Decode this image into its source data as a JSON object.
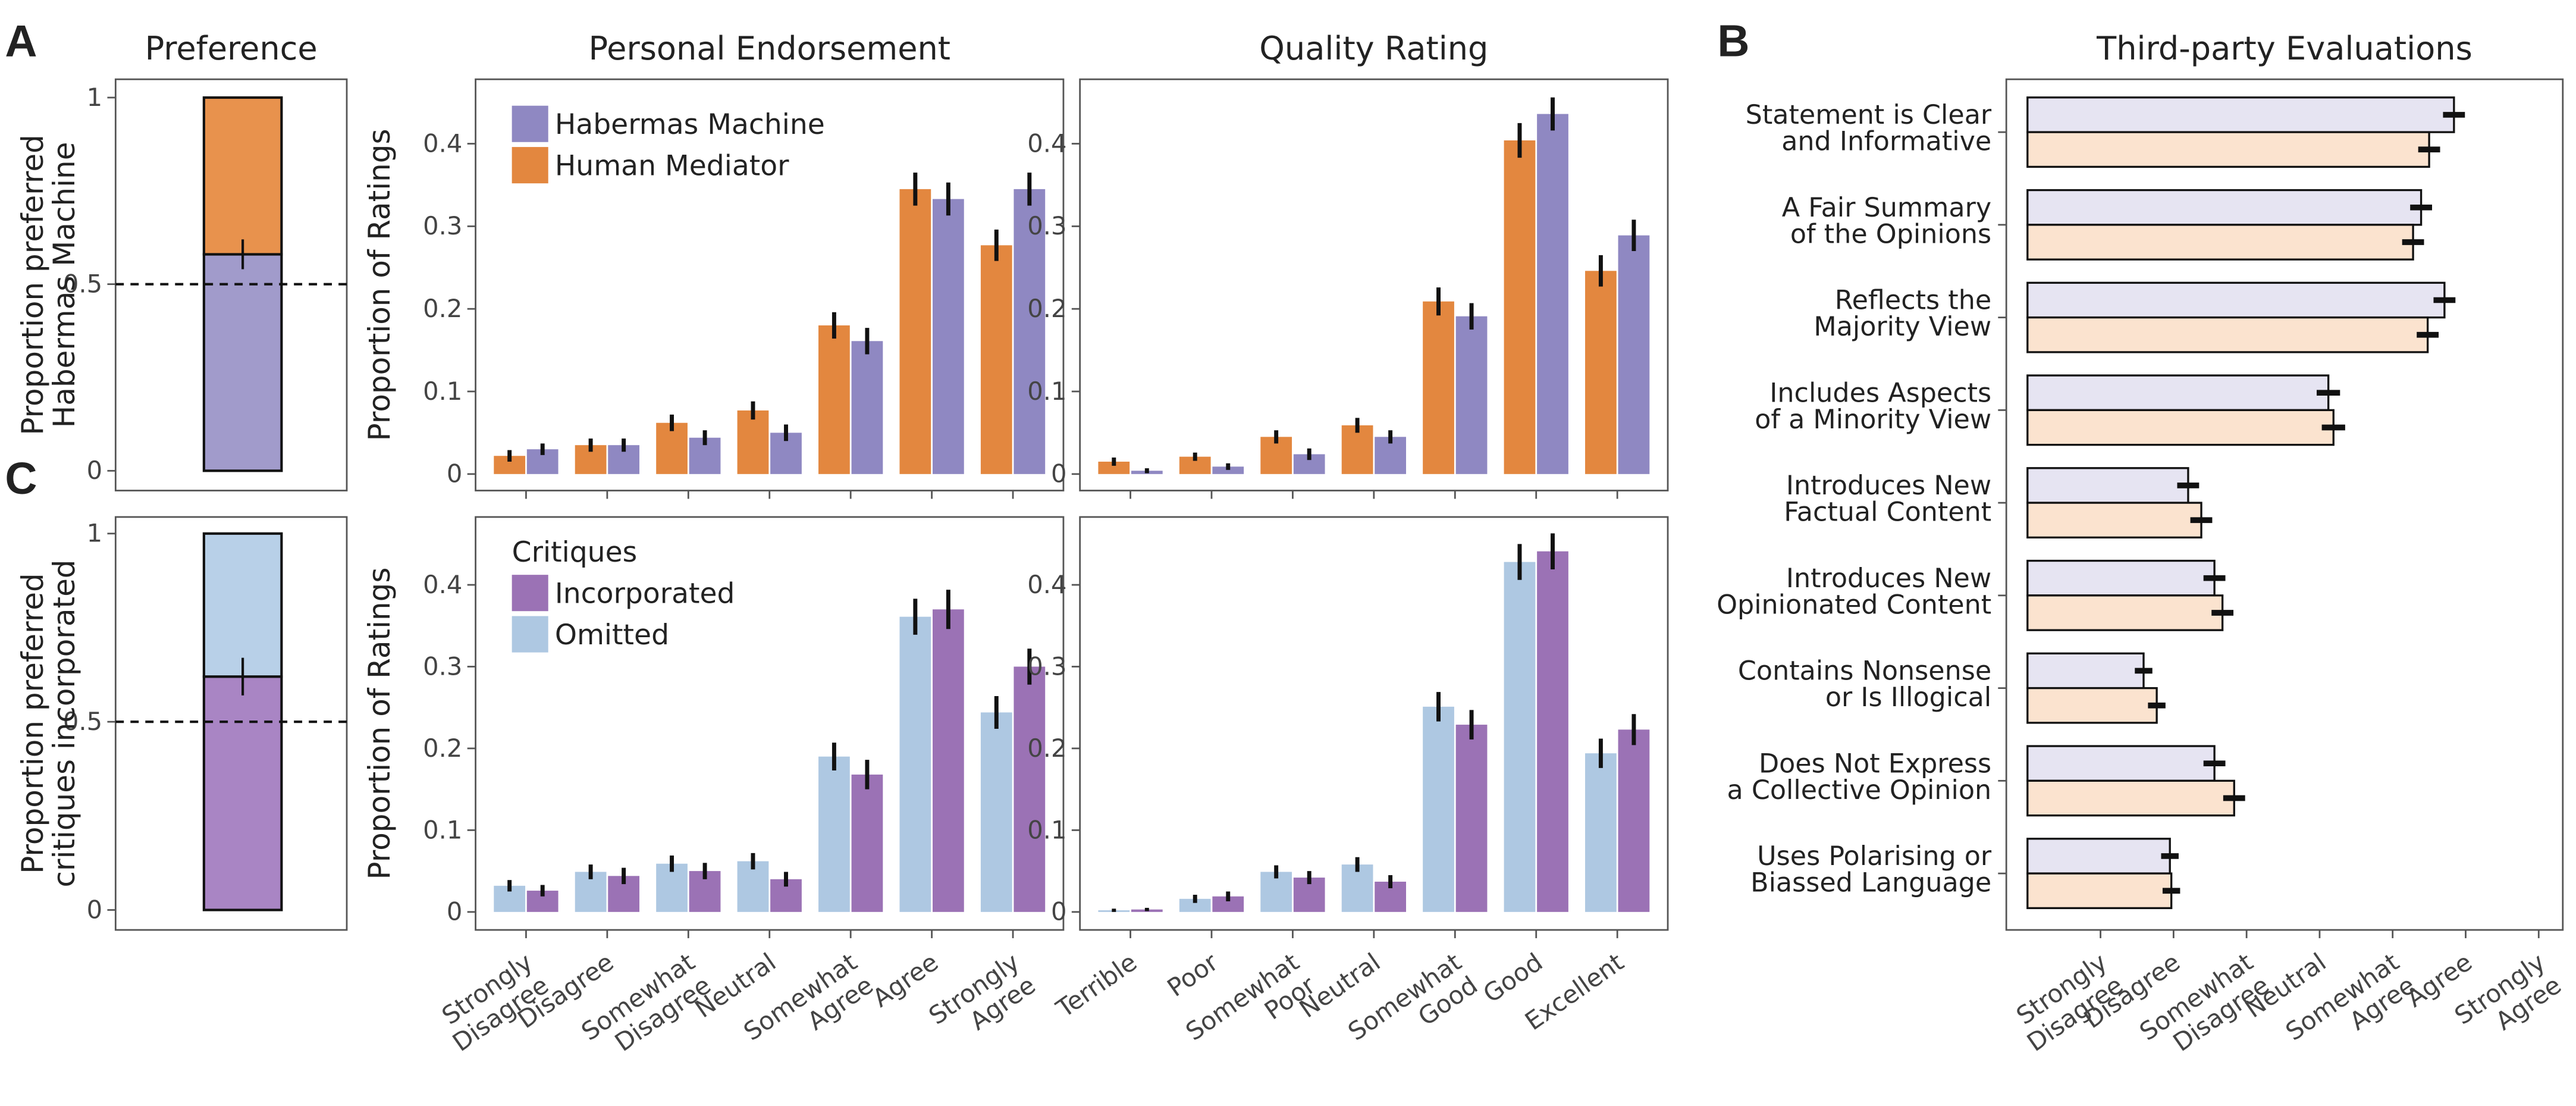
{
  "chart_data": [
    {
      "type": "stacked_bar",
      "panel_label": "A",
      "title": "Preference",
      "ylabel": "Proportion preferred\nHabermas Machine",
      "values": [
        0.58,
        0.42
      ],
      "colors": [
        "#a19bcb",
        "#e8924d"
      ],
      "error": 0.04,
      "reference_line": 0.5,
      "ylim": [
        -0.053,
        1.049
      ],
      "yticks": [
        0,
        0.5,
        1
      ]
    },
    {
      "type": "bar",
      "title": "Personal Endorsement",
      "ylabel": "Proportion of Ratings",
      "series": [
        {
          "name": "Habermas Machine",
          "color": "#8f88c2",
          "values": [
            0.03,
            0.035,
            0.044,
            0.05,
            0.161,
            0.333,
            0.345
          ],
          "errors": [
            0.007,
            0.008,
            0.009,
            0.01,
            0.016,
            0.02,
            0.02
          ]
        },
        {
          "name": "Human Mediator",
          "color": "#e3873f",
          "values": [
            0.022,
            0.035,
            0.062,
            0.077,
            0.18,
            0.345,
            0.277
          ],
          "errors": [
            0.007,
            0.008,
            0.01,
            0.011,
            0.016,
            0.02,
            0.019
          ]
        }
      ],
      "ylim": [
        -0.02,
        0.478
      ],
      "yticks": [
        0,
        0.1,
        0.2,
        0.3,
        0.4
      ]
    },
    {
      "type": "bar",
      "title": "Quality Rating",
      "series": [
        {
          "color": "#8f88c2",
          "values": [
            0.004,
            0.009,
            0.024,
            0.045,
            0.191,
            0.436,
            0.289
          ],
          "errors": [
            0.003,
            0.004,
            0.007,
            0.008,
            0.016,
            0.02,
            0.019
          ]
        },
        {
          "color": "#e3873f",
          "values": [
            0.015,
            0.021,
            0.045,
            0.059,
            0.209,
            0.404,
            0.246
          ],
          "errors": [
            0.005,
            0.005,
            0.008,
            0.009,
            0.017,
            0.021,
            0.019
          ]
        }
      ],
      "ylim": [
        -0.02,
        0.478
      ],
      "yticks": [
        0,
        0.1,
        0.2,
        0.3,
        0.4
      ]
    },
    {
      "type": "stacked_bar",
      "panel_label": "C",
      "ylabel": "Proportion preferred\ncritiques incorporated",
      "values": [
        0.62,
        0.38
      ],
      "colors": [
        "#a985c4",
        "#b8d0e8"
      ],
      "error": 0.05,
      "reference_line": 0.5,
      "ylim": [
        -0.053,
        1.044
      ],
      "yticks": [
        0,
        0.5,
        1
      ]
    },
    {
      "type": "bar",
      "ylabel": "Proportion of Ratings",
      "legend_title": "Critiques",
      "categories": [
        "Strongly Disagree",
        "Disagree",
        "Somewhat Disagree",
        "Neutral",
        "Somewhat Agree",
        "Agree",
        "Strongly Agree"
      ],
      "series": [
        {
          "name": "Incorporated",
          "color": "#9b72b5",
          "values": [
            0.026,
            0.044,
            0.05,
            0.04,
            0.168,
            0.37,
            0.3
          ],
          "errors": [
            0.007,
            0.01,
            0.01,
            0.009,
            0.018,
            0.024,
            0.022
          ]
        },
        {
          "name": "Omitted",
          "color": "#aec8e2",
          "values": [
            0.032,
            0.049,
            0.059,
            0.062,
            0.19,
            0.361,
            0.244
          ],
          "errors": [
            0.007,
            0.009,
            0.01,
            0.01,
            0.017,
            0.022,
            0.02
          ]
        }
      ],
      "ylim": [
        -0.022,
        0.483
      ],
      "yticks": [
        0,
        0.1,
        0.2,
        0.3,
        0.4
      ]
    },
    {
      "type": "bar",
      "categories": [
        "Terrible",
        "Poor",
        "Somewhat Poor",
        "Neutral",
        "Somewhat Good",
        "Good",
        "Excellent"
      ],
      "series": [
        {
          "color": "#9b72b5",
          "values": [
            0.003,
            0.019,
            0.042,
            0.037,
            0.229,
            0.441,
            0.223
          ],
          "errors": [
            0.002,
            0.006,
            0.008,
            0.008,
            0.018,
            0.022,
            0.019
          ]
        },
        {
          "color": "#aec8e2",
          "values": [
            0.002,
            0.016,
            0.049,
            0.058,
            0.251,
            0.428,
            0.194
          ],
          "errors": [
            0.002,
            0.005,
            0.008,
            0.009,
            0.018,
            0.022,
            0.018
          ]
        }
      ],
      "ylim": [
        -0.022,
        0.483
      ],
      "yticks": [
        0,
        0.1,
        0.2,
        0.3,
        0.4
      ]
    },
    {
      "type": "hbar",
      "panel_label": "B",
      "title": "Third-party Evaluations",
      "categories": [
        "Statement is Clear\nand Informative",
        "A Fair Summary\nof the Opinions",
        "Reflects the\nMajority View",
        "Includes Aspects\nof a Minority View",
        "Introduces New\nFactual Content",
        "Introduces New\nOpinionated Content",
        "Contains Nonsense\nor Is Illogical",
        "Does Not Express\na Collective Opinion",
        "Uses Polarising or\nBiassed Language"
      ],
      "series": [
        {
          "color": "#e6e4f2",
          "values": [
            5.84,
            5.39,
            5.71,
            4.12,
            2.2,
            2.56,
            1.59,
            2.56,
            1.95
          ],
          "errors": [
            0.15,
            0.15,
            0.15,
            0.16,
            0.15,
            0.15,
            0.12,
            0.15,
            0.12
          ]
        },
        {
          "color": "#fbe3cf",
          "values": [
            5.5,
            5.28,
            5.48,
            4.19,
            2.38,
            2.67,
            1.77,
            2.83,
            1.97
          ],
          "errors": [
            0.15,
            0.15,
            0.15,
            0.16,
            0.15,
            0.15,
            0.12,
            0.15,
            0.12
          ]
        }
      ],
      "xlim": [
        -0.29,
        7.33
      ],
      "xticks": [
        {
          "value": 1,
          "label": "Strongly Disagree"
        },
        {
          "value": 2,
          "label": "Disagree"
        },
        {
          "value": 3,
          "label": "Somewhat Disagree"
        },
        {
          "value": 4,
          "label": "Neutral"
        },
        {
          "value": 5,
          "label": "Somewhat Agree"
        },
        {
          "value": 6,
          "label": "Agree"
        },
        {
          "value": 7,
          "label": "Strongly Agree"
        }
      ]
    }
  ]
}
